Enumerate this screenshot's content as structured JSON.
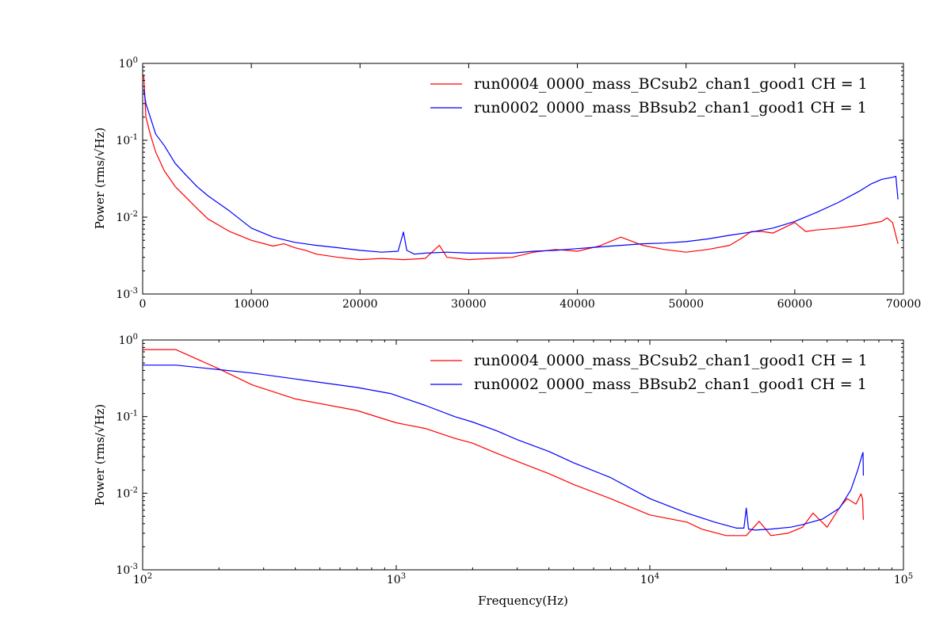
{
  "chart_data": [
    {
      "type": "line",
      "title": "",
      "xlabel": "",
      "ylabel": "Power (rms/√Hz)",
      "xscale": "linear",
      "yscale": "log",
      "xlim": [
        0,
        70000
      ],
      "ylim": [
        0.001,
        1
      ],
      "x_ticks": [
        "0",
        "10000",
        "20000",
        "30000",
        "40000",
        "50000",
        "60000",
        "70000"
      ],
      "y_ticks": [
        "10^0",
        "10^-1",
        "10^-2",
        "10^-3"
      ],
      "grid": false,
      "legend_position": "top-right",
      "series": [
        {
          "name": "run0004_0000_mass_BCsub2_chan1_good1 CH = 1",
          "color": "#ff0000",
          "x": [
            100,
            300,
            700,
            1200,
            2000,
            3000,
            4000,
            5000,
            6000,
            8000,
            10000,
            12000,
            13000,
            14000,
            15000,
            16000,
            18000,
            20000,
            22000,
            24000,
            26000,
            27300,
            28000,
            30000,
            32000,
            34000,
            36000,
            38000,
            40000,
            42000,
            44000,
            46000,
            48000,
            50000,
            52000,
            54000,
            55000,
            56000,
            57000,
            58000,
            60000,
            61000,
            62000,
            64000,
            66000,
            68000,
            68500,
            69000,
            69500
          ],
          "y": [
            0.7,
            0.2,
            0.12,
            0.07,
            0.04,
            0.025,
            0.018,
            0.013,
            0.0095,
            0.0065,
            0.005,
            0.0042,
            0.0045,
            0.004,
            0.0037,
            0.0033,
            0.003,
            0.0028,
            0.0029,
            0.0028,
            0.0029,
            0.0043,
            0.003,
            0.0028,
            0.0029,
            0.003,
            0.0035,
            0.0038,
            0.0036,
            0.0042,
            0.0055,
            0.0043,
            0.0038,
            0.0035,
            0.0038,
            0.0043,
            0.0052,
            0.0065,
            0.0065,
            0.0062,
            0.0085,
            0.0065,
            0.0068,
            0.0072,
            0.0078,
            0.0088,
            0.0098,
            0.0085,
            0.0045
          ]
        },
        {
          "name": "run0002_0000_mass_BBsub2_chan1_good1 CH = 1",
          "color": "#0000ff",
          "x": [
            100,
            300,
            700,
            1200,
            2000,
            3000,
            4000,
            5000,
            6000,
            8000,
            10000,
            12000,
            14000,
            16000,
            18000,
            20000,
            22000,
            23500,
            24000,
            24300,
            25000,
            26000,
            28000,
            30000,
            32000,
            34000,
            36000,
            38000,
            40000,
            42000,
            44000,
            46000,
            48000,
            50000,
            52000,
            54000,
            56000,
            58000,
            60000,
            62000,
            64000,
            66000,
            67000,
            68000,
            69000,
            69300,
            69500
          ],
          "y": [
            0.46,
            0.3,
            0.2,
            0.12,
            0.085,
            0.05,
            0.035,
            0.025,
            0.019,
            0.012,
            0.0072,
            0.0055,
            0.0047,
            0.0043,
            0.004,
            0.0037,
            0.0035,
            0.0036,
            0.0064,
            0.0037,
            0.0033,
            0.0034,
            0.0035,
            0.0034,
            0.0034,
            0.0034,
            0.0036,
            0.0037,
            0.0039,
            0.0041,
            0.0043,
            0.0045,
            0.0046,
            0.0048,
            0.0052,
            0.0058,
            0.0064,
            0.0072,
            0.0088,
            0.0115,
            0.0155,
            0.022,
            0.027,
            0.031,
            0.033,
            0.034,
            0.017
          ]
        }
      ]
    },
    {
      "type": "line",
      "title": "",
      "xlabel": "Frequency(Hz)",
      "ylabel": "Power (rms/√Hz)",
      "xscale": "log",
      "yscale": "log",
      "xlim": [
        100,
        100000
      ],
      "ylim": [
        0.001,
        1
      ],
      "x_ticks": [
        "10^2",
        "10^3",
        "10^4",
        "10^5"
      ],
      "y_ticks": [
        "10^0",
        "10^-1",
        "10^-2",
        "10^-3"
      ],
      "grid": false,
      "legend_position": "top-right",
      "series": [
        {
          "name": "run0004_0000_mass_BCsub2_chan1_good1 CH = 1",
          "color": "#ff0000",
          "x": [
            100,
            135,
            200,
            270,
            400,
            700,
            1000,
            1300,
            1700,
            2000,
            2500,
            3000,
            4000,
            5000,
            7000,
            10000,
            14000,
            16000,
            20000,
            24000,
            27000,
            30000,
            35000,
            40000,
            44000,
            50000,
            56000,
            60000,
            65000,
            68000,
            69000,
            69500
          ],
          "y": [
            0.75,
            0.75,
            0.42,
            0.26,
            0.17,
            0.12,
            0.083,
            0.07,
            0.052,
            0.045,
            0.033,
            0.026,
            0.018,
            0.013,
            0.0085,
            0.0052,
            0.0042,
            0.0034,
            0.0028,
            0.0028,
            0.0043,
            0.0028,
            0.003,
            0.0036,
            0.0055,
            0.0036,
            0.0065,
            0.0085,
            0.0072,
            0.0098,
            0.0085,
            0.0045
          ]
        },
        {
          "name": "run0002_0000_mass_BBsub2_chan1_good1 CH = 1",
          "color": "#0000ff",
          "x": [
            100,
            135,
            200,
            270,
            400,
            700,
            950,
            1300,
            1700,
            2000,
            2500,
            3000,
            4000,
            5000,
            7000,
            10000,
            14000,
            18000,
            22000,
            23500,
            24000,
            24500,
            26000,
            30000,
            36000,
            40000,
            48000,
            56000,
            62000,
            66000,
            68000,
            69000,
            69300,
            69500
          ],
          "y": [
            0.47,
            0.47,
            0.41,
            0.37,
            0.31,
            0.24,
            0.2,
            0.14,
            0.1,
            0.085,
            0.065,
            0.05,
            0.035,
            0.025,
            0.016,
            0.0085,
            0.0055,
            0.0042,
            0.0035,
            0.0035,
            0.0064,
            0.0034,
            0.0033,
            0.0034,
            0.0036,
            0.0039,
            0.0046,
            0.0064,
            0.011,
            0.02,
            0.028,
            0.033,
            0.034,
            0.017
          ]
        }
      ]
    }
  ]
}
